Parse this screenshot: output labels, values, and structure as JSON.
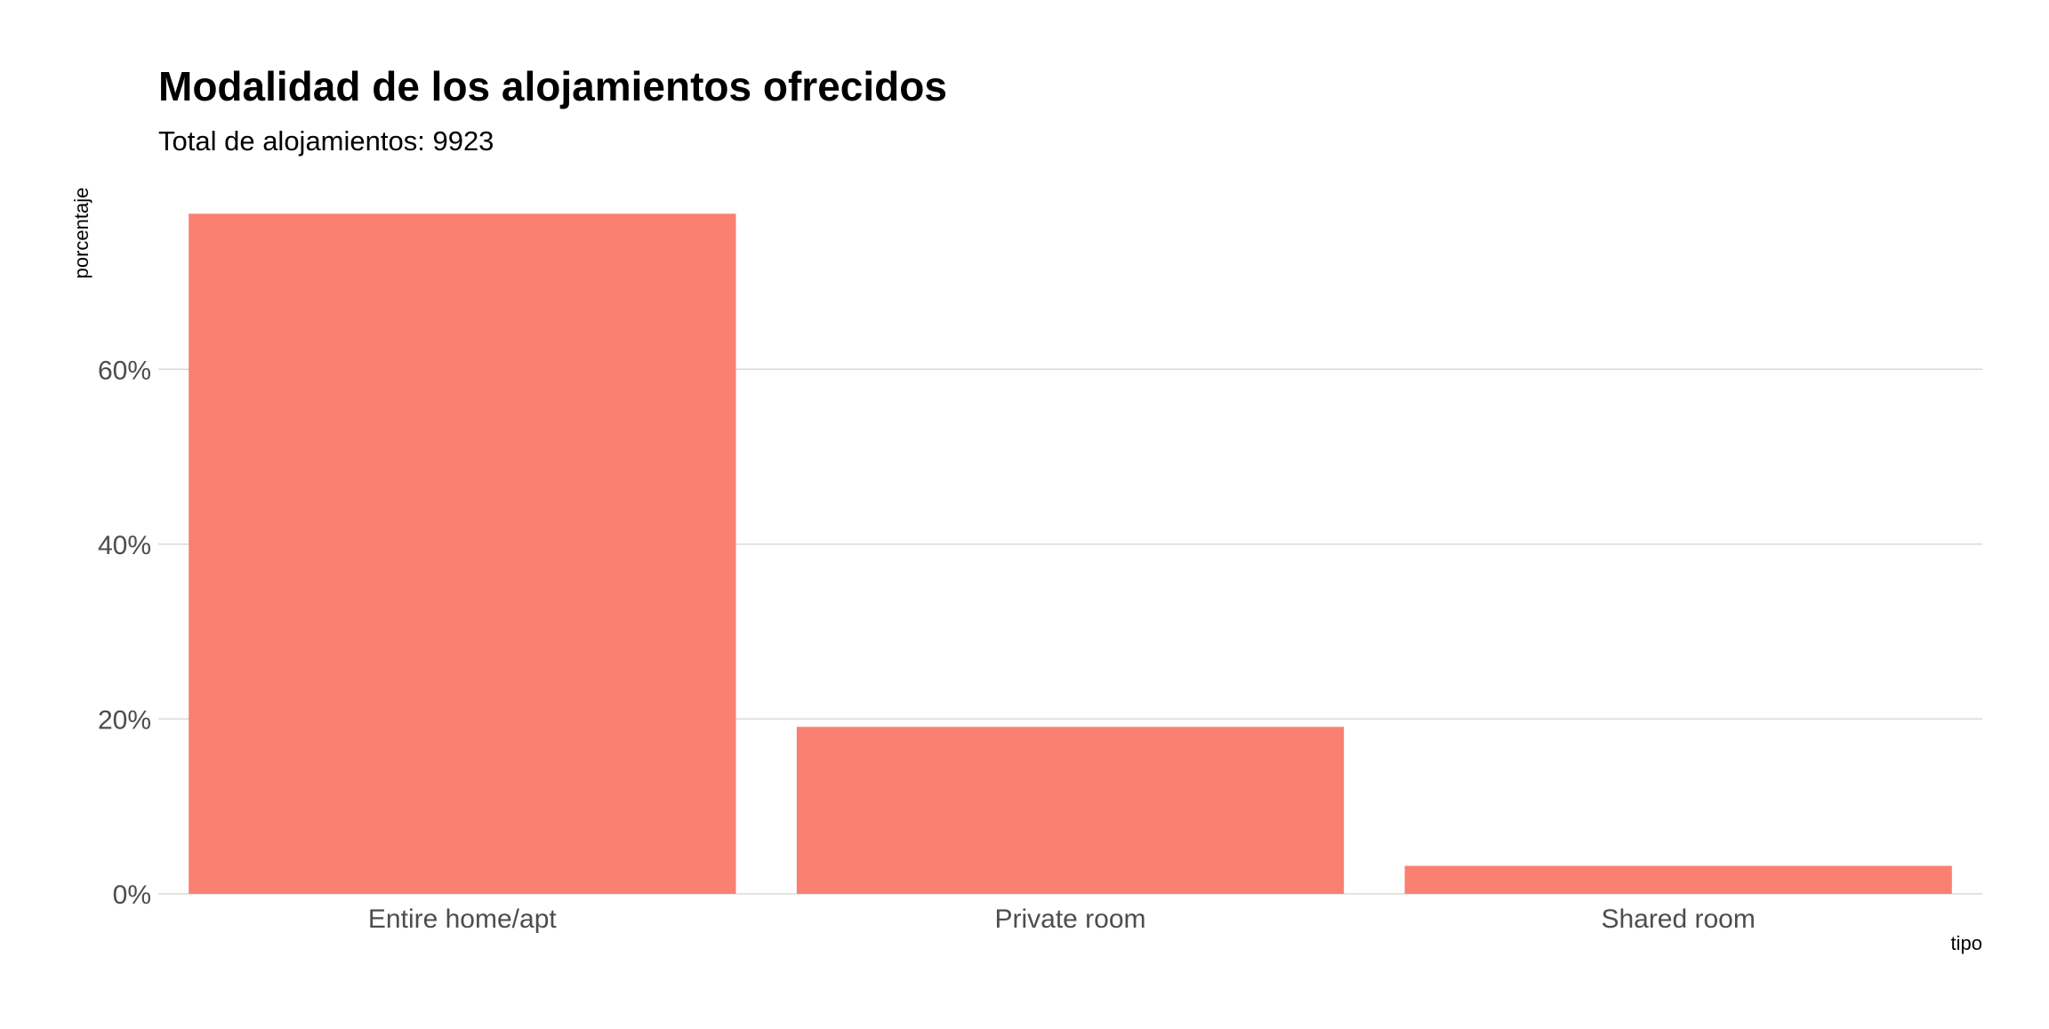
{
  "chart_data": {
    "type": "bar",
    "title": "Modalidad de los alojamientos ofrecidos",
    "subtitle": "Total de alojamientos: 9923",
    "xlabel": "tipo",
    "ylabel": "porcentaje",
    "categories": [
      "Entire home/apt",
      "Private room",
      "Shared room"
    ],
    "values": [
      77.8,
      19.1,
      3.2
    ],
    "yticks": [
      0,
      20,
      40,
      60
    ],
    "ytick_labels": [
      "0%",
      "20%",
      "40%",
      "60%"
    ],
    "ylim": [
      0,
      81.7
    ],
    "grid": true,
    "legend": "none",
    "bar_color": "#fa8072"
  }
}
